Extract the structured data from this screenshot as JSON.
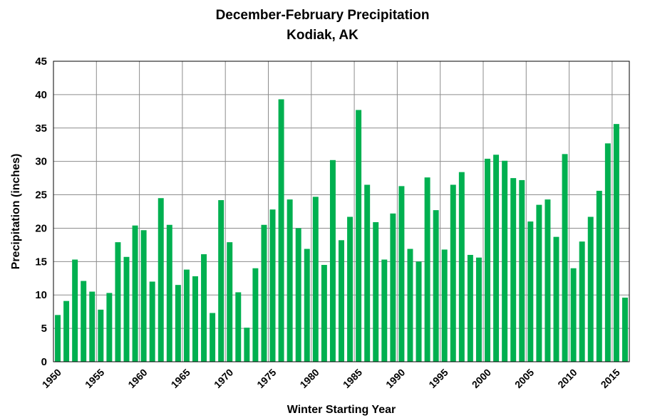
{
  "chart_data": {
    "type": "bar",
    "title": "December-February Precipitation",
    "subtitle": "Kodiak, AK",
    "xlabel": "Winter Starting Year",
    "ylabel": "Precipitation (inches)",
    "ylim": [
      0,
      45
    ],
    "yticks": [
      0,
      5,
      10,
      15,
      20,
      25,
      30,
      35,
      40,
      45
    ],
    "xtick_labels": [
      "1950",
      "1955",
      "1960",
      "1965",
      "1970",
      "1975",
      "1980",
      "1985",
      "1990",
      "1995",
      "2000",
      "2005",
      "2010",
      "2015"
    ],
    "grid": true,
    "bar_color": "#00b050",
    "categories": [
      1950,
      1951,
      1952,
      1953,
      1954,
      1955,
      1956,
      1957,
      1958,
      1959,
      1960,
      1961,
      1962,
      1963,
      1964,
      1965,
      1966,
      1967,
      1968,
      1969,
      1970,
      1971,
      1972,
      1973,
      1974,
      1975,
      1976,
      1977,
      1978,
      1979,
      1980,
      1981,
      1982,
      1983,
      1984,
      1985,
      1986,
      1987,
      1988,
      1989,
      1990,
      1991,
      1992,
      1993,
      1994,
      1995,
      1996,
      1997,
      1998,
      1999,
      2000,
      2001,
      2002,
      2003,
      2004,
      2005,
      2006,
      2007,
      2008,
      2009,
      2010,
      2011,
      2012,
      2013,
      2014,
      2015,
      2016
    ],
    "values": [
      7.0,
      9.1,
      15.3,
      12.1,
      10.5,
      7.8,
      10.3,
      17.9,
      15.7,
      20.4,
      19.7,
      12.0,
      24.5,
      20.5,
      11.5,
      13.8,
      12.8,
      16.1,
      7.3,
      24.2,
      17.9,
      10.4,
      5.1,
      14.0,
      20.5,
      22.8,
      39.3,
      24.3,
      20.0,
      16.9,
      24.7,
      14.5,
      30.2,
      18.2,
      21.7,
      37.7,
      26.5,
      20.9,
      15.3,
      22.2,
      26.3,
      16.9,
      15.0,
      27.6,
      22.7,
      16.8,
      26.5,
      28.4,
      16.0,
      15.6,
      30.4,
      31.0,
      30.1,
      27.5,
      27.2,
      21.0,
      23.5,
      24.3,
      18.7,
      31.1,
      14.0,
      18.0,
      21.7,
      25.6,
      32.7,
      35.6,
      9.6
    ]
  }
}
